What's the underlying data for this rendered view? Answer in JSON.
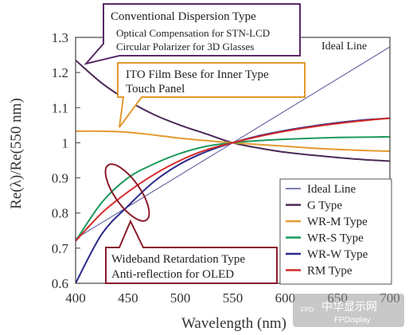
{
  "chart_data": {
    "type": "line",
    "xlabel": "Wavelength (nm)",
    "ylabel": "Re(λ)/Re(550 nm)",
    "xlim": [
      400,
      700
    ],
    "ylim": [
      0.6,
      1.3
    ],
    "xticks": [
      400,
      450,
      500,
      550,
      600,
      650,
      700
    ],
    "yticks": [
      0.6,
      0.7,
      0.8,
      0.9,
      1,
      1.1,
      1.2,
      1.3
    ],
    "ytick_labels": [
      "0.6",
      "0.7",
      "0.8",
      "0.9",
      "1",
      "1.1",
      "1.2",
      "1.3"
    ],
    "legend_position": "bottom-right",
    "series": [
      {
        "name": "Ideal Line",
        "color": "#6a6aa8",
        "width": 1.2,
        "x": [
          400,
          700
        ],
        "y": [
          0.727,
          1.273
        ]
      },
      {
        "name": "G Type",
        "color": "#4a2a55",
        "width": 2,
        "x": [
          400,
          425,
          450,
          475,
          500,
          525,
          550,
          575,
          600,
          625,
          650,
          675,
          700
        ],
        "y": [
          1.235,
          1.17,
          1.12,
          1.08,
          1.05,
          1.025,
          1.0,
          0.985,
          0.973,
          0.965,
          0.958,
          0.952,
          0.948
        ]
      },
      {
        "name": "WR-M Type",
        "color": "#e39a2e",
        "width": 2,
        "x": [
          400,
          425,
          450,
          475,
          500,
          525,
          550,
          575,
          600,
          625,
          650,
          675,
          700
        ],
        "y": [
          1.033,
          1.033,
          1.03,
          1.022,
          1.013,
          1.006,
          1.0,
          0.995,
          0.99,
          0.985,
          0.981,
          0.978,
          0.976
        ]
      },
      {
        "name": "WR-S Type",
        "color": "#1a9a5a",
        "width": 2,
        "x": [
          400,
          425,
          450,
          475,
          500,
          525,
          550,
          575,
          600,
          625,
          650,
          675,
          700
        ],
        "y": [
          0.72,
          0.83,
          0.9,
          0.94,
          0.97,
          0.99,
          1.0,
          1.006,
          1.01,
          1.013,
          1.015,
          1.016,
          1.017
        ]
      },
      {
        "name": "WR-W Type",
        "color": "#2a2a8a",
        "width": 2,
        "x": [
          400,
          425,
          450,
          475,
          500,
          525,
          550,
          575,
          600,
          625,
          650,
          675,
          700
        ],
        "y": [
          0.6,
          0.74,
          0.82,
          0.89,
          0.94,
          0.975,
          1.0,
          1.02,
          1.035,
          1.047,
          1.057,
          1.065,
          1.07
        ]
      },
      {
        "name": "RM Type",
        "color": "#d42a2a",
        "width": 2,
        "x": [
          400,
          425,
          450,
          475,
          500,
          525,
          550,
          575,
          600,
          625,
          650,
          675,
          700
        ],
        "y": [
          0.72,
          0.8,
          0.86,
          0.91,
          0.95,
          0.98,
          1.0,
          1.018,
          1.033,
          1.045,
          1.055,
          1.063,
          1.07
        ]
      }
    ],
    "annotations": {
      "ideal_label": "Ideal Line",
      "conventional": {
        "title": "Conventional Dispersion Type",
        "line1": "Optical Compensation for STN-LCD",
        "line2": "Circular Polarizer for 3D Glasses",
        "color": "#5a2a6a"
      },
      "ito": {
        "title": "ITO Film Bese for Inner Type",
        "line1": "Touch Panel",
        "color": "#e39a2e"
      },
      "wideband": {
        "title": "Wideband Retardation Type",
        "line1": "Anti-reflection for OLED",
        "color": "#8a1a2a"
      }
    }
  },
  "watermark": {
    "badge": "FPD",
    "text": "中华显示网",
    "sub": "FPDisplay"
  }
}
